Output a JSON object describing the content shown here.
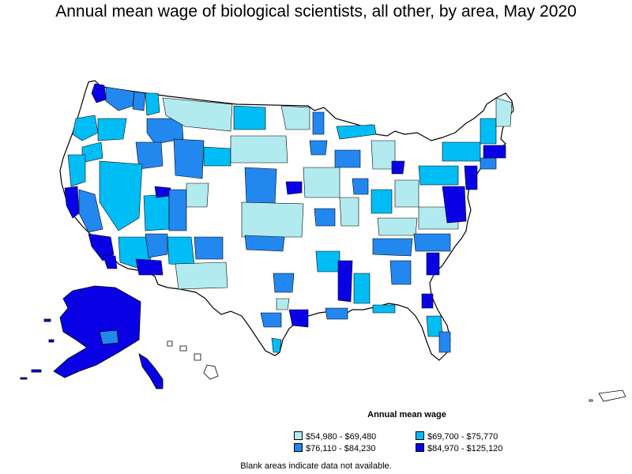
{
  "title": "Annual mean wage of biological scientists, all other, by area, May 2020",
  "legend": {
    "title": "Annual mean wage",
    "items": [
      {
        "label": "$54,980 - $69,480",
        "color": "#b2ebef"
      },
      {
        "label": "$69,700 - $75,770",
        "color": "#00bdf5"
      },
      {
        "label": "$76,110 - $84,230",
        "color": "#2387f0"
      },
      {
        "label": "$84,970 - $125,120",
        "color": "#0a00e6"
      }
    ]
  },
  "footnote": "Blank areas indicate data not available.",
  "colors": {
    "blank": "#ffffff",
    "border": "#000000"
  }
}
